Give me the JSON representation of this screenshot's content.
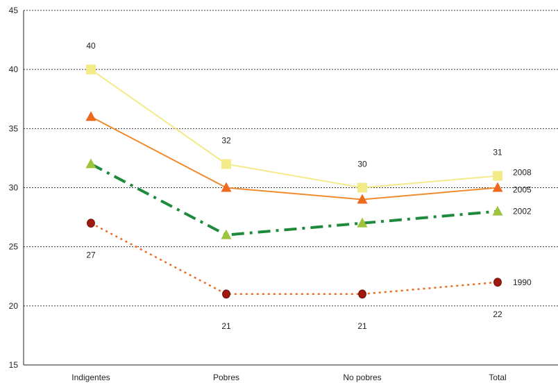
{
  "chart_data": {
    "type": "line",
    "title": "",
    "xlabel": "",
    "ylabel": "",
    "categories": [
      "Indigentes",
      "Pobres",
      "No pobres",
      "Total"
    ],
    "ylim": [
      15,
      45
    ],
    "yticks": [
      "15",
      "20",
      "25",
      "30",
      "35",
      "40",
      "45"
    ],
    "grid": true,
    "legend": "series labels at right end of each line",
    "series": [
      {
        "name": "2008",
        "values": [
          40,
          32,
          30,
          31
        ],
        "color": "#f3ea88",
        "marker": "square",
        "line_style": "solid",
        "value_labels": [
          "40",
          "32",
          "30",
          "31"
        ]
      },
      {
        "name": "2005",
        "values": [
          36,
          30,
          29,
          30
        ],
        "color": "#f08a2c",
        "marker_color": "#ee6a1f",
        "marker": "triangle",
        "line_style": "solid"
      },
      {
        "name": "2002",
        "values": [
          32,
          26,
          27,
          28
        ],
        "color": "#1e8a3c",
        "marker_color": "#9cc53a",
        "marker": "triangle",
        "line_style": "dash-dot"
      },
      {
        "name": "1990",
        "values": [
          27,
          21,
          21,
          22
        ],
        "color": "#ee6a1f",
        "marker_color": "#a01810",
        "marker": "circle",
        "line_style": "dotted",
        "value_labels": [
          "27",
          "21",
          "21",
          "22"
        ]
      }
    ]
  }
}
